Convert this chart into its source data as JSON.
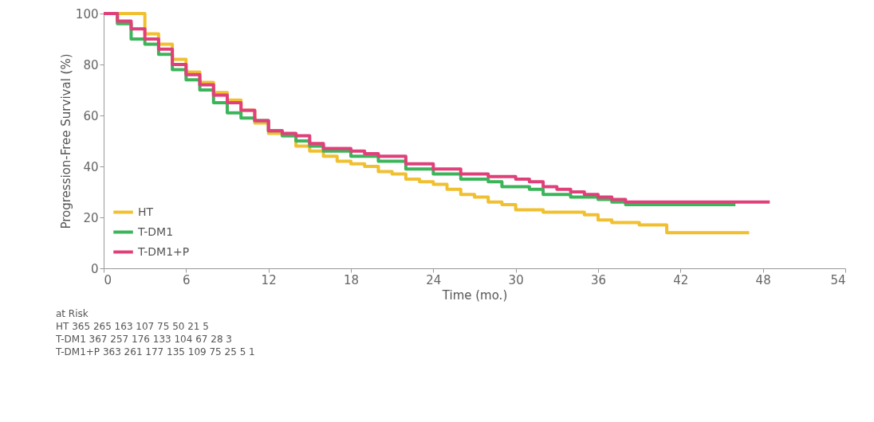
{
  "chart_data": {
    "type": "step",
    "xlabel": "Time (mo.)",
    "ylabel": "Progression-Free Survival (%)",
    "xlim": [
      0,
      54
    ],
    "ylim": [
      0,
      100
    ],
    "xticks": [
      0,
      6,
      12,
      18,
      24,
      30,
      36,
      42,
      48,
      54
    ],
    "yticks": [
      0,
      20,
      40,
      60,
      80,
      100
    ],
    "grid": false,
    "legend": "bottom left",
    "marker": "none",
    "line_style": "solid",
    "series": [
      {
        "name": "HT",
        "color": "#f0c030",
        "x": [
          0,
          2,
          3,
          4,
          5,
          6,
          7,
          8,
          9,
          10,
          11,
          12,
          13,
          14,
          15,
          16,
          17,
          18,
          19,
          20,
          21,
          22,
          23,
          24,
          25,
          26,
          27,
          28,
          29,
          30,
          32,
          35,
          36,
          37,
          39,
          41,
          47
        ],
        "values": [
          100,
          100,
          92,
          88,
          82,
          77,
          73,
          69,
          66,
          62,
          57,
          53,
          52,
          48,
          46,
          44,
          42,
          41,
          40,
          38,
          37,
          35,
          34,
          33,
          31,
          29,
          28,
          26,
          25,
          23,
          22,
          21,
          19,
          18,
          17,
          14,
          14
        ]
      },
      {
        "name": "T-DM1",
        "color": "#3cb55a",
        "x": [
          0,
          1,
          2,
          3,
          4,
          5,
          6,
          7,
          8,
          9,
          10,
          11,
          12,
          13,
          14,
          15,
          16,
          18,
          20,
          22,
          24,
          26,
          28,
          29,
          31,
          32,
          34,
          36,
          37,
          38,
          46
        ],
        "values": [
          100,
          96,
          90,
          88,
          84,
          78,
          74,
          70,
          65,
          61,
          59,
          58,
          54,
          52,
          50,
          48,
          46,
          44,
          42,
          39,
          37,
          35,
          34,
          32,
          31,
          29,
          28,
          27,
          26,
          25,
          25
        ]
      },
      {
        "name": "T-DM1+P",
        "color": "#e0407a",
        "x": [
          0,
          1,
          2,
          3,
          4,
          5,
          6,
          7,
          8,
          9,
          10,
          11,
          12,
          13,
          14,
          15,
          16,
          18,
          19,
          20,
          22,
          24,
          26,
          28,
          30,
          31,
          32,
          33,
          34,
          35,
          36,
          37,
          38,
          48.5
        ],
        "values": [
          100,
          97,
          94,
          90,
          86,
          80,
          76,
          72,
          68,
          65,
          62,
          58,
          54,
          53,
          52,
          49,
          47,
          46,
          45,
          44,
          41,
          39,
          37,
          36,
          35,
          34,
          32,
          31,
          30,
          29,
          28,
          27,
          26,
          26
        ]
      }
    ],
    "annotations": [
      "at Risk",
      "HT 365 265 163 107 75 50 21 5",
      "T-DM1 367 257 176 133 104 67 28 3",
      "T-DM1+P 363 261 177 135 109 75 25 5 1"
    ]
  }
}
